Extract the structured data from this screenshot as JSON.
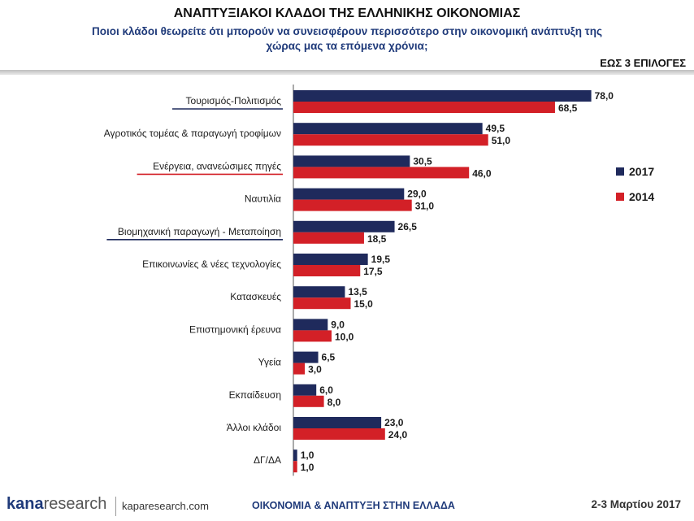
{
  "header": {
    "title": "ΑΝΑΠΤΥΞΙΑΚΟΙ ΚΛΑΔΟΙ ΤΗΣ ΕΛΛΗΝΙΚΗΣ ΟΙΚΟΝΟΜΙΑΣ",
    "subtitle": "Ποιοι κλάδοι θεωρείτε ότι μπορούν να συνεισφέρουν περισσότερο στην οικονομική ανάπτυξη της χώρας μας τα επόμενα χρόνια;",
    "badge": "ΕΩΣ 3 ΕΠΙΛΟΓΕΣ"
  },
  "footer": {
    "logo_prefix": "kana",
    "logo_suffix": "research",
    "site": "kaparesearch.com",
    "topic": "ΟΙΚΟΝΟΜΙΑ & ΑΝΑΠΤΥΞΗ ΣΤΗΝ ΕΛΛΑΔΑ",
    "date": "2-3 Μαρτίου 2017"
  },
  "colors": {
    "series_2017": "#1f2a5c",
    "series_2014": "#d32027",
    "underline_blue": "#1f2a5c",
    "underline_red": "#d32027"
  },
  "chart_data": {
    "type": "bar",
    "orientation": "horizontal",
    "title": "ΑΝΑΠΤΥΞΙΑΚΟΙ ΚΛΑΔΟΙ ΤΗΣ ΕΛΛΗΝΙΚΗΣ ΟΙΚΟΝΟΜΙΑΣ",
    "categories": [
      "Τουρισμός-Πολιτισμός",
      "Αγροτικός τομέας & παραγωγή τροφίμων",
      "Ενέργεια, ανανεώσιμες πηγές",
      "Ναυτιλία",
      "Βιομηχανική παραγωγή - Μεταποίηση",
      "Επικοινωνίες & νέες τεχνολογίες",
      "Κατασκευές",
      "Επιστημονική έρευνα",
      "Υγεία",
      "Εκπαίδευση",
      "Άλλοι κλάδοι",
      "ΔΓ/ΔΑ"
    ],
    "series": [
      {
        "name": "2017",
        "values": [
          78.0,
          49.5,
          30.5,
          29.0,
          26.5,
          19.5,
          13.5,
          9.0,
          6.5,
          6.0,
          23.0,
          1.0
        ]
      },
      {
        "name": "2014",
        "values": [
          68.5,
          51.0,
          46.0,
          31.0,
          18.5,
          17.5,
          15.0,
          10.0,
          3.0,
          8.0,
          24.0,
          1.0
        ]
      }
    ],
    "value_labels": {
      "2017": [
        "78,0",
        "49,5",
        "30,5",
        "29,0",
        "26,5",
        "19,5",
        "13,5",
        "9,0",
        "6,5",
        "6,0",
        "23,0",
        "1,0"
      ],
      "2014": [
        "68,5",
        "51,0",
        "46,0",
        "31,0",
        "18,5",
        "17,5",
        "15,0",
        "10,0",
        "3,0",
        "8,0",
        "24,0",
        "1,0"
      ]
    },
    "underlined_categories": {
      "Τουρισμός-Πολιτισμός": "blue",
      "Ενέργεια, ανανεώσιμες πηγές": "red",
      "Βιομηχανική παραγωγή - Μεταποίηση": "blue"
    },
    "legend": {
      "position": "right",
      "entries": [
        "2017",
        "2014"
      ]
    },
    "xlim": [
      0,
      100
    ],
    "grid": false
  }
}
